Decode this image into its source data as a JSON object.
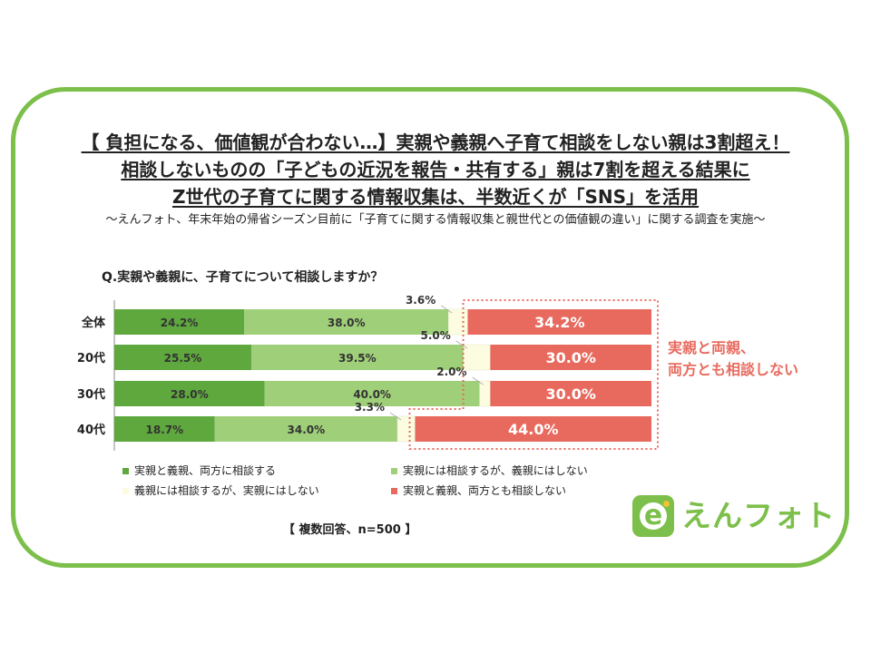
{
  "header": {
    "title_lines": [
      "【 負担になる、価値観が合わない…】実親や義親へ子育て相談をしない親は3割超え！",
      "相談しないものの「子どもの近況を報告・共有する」親は7割を超える結果に",
      "Z世代の子育てに関する情報収集は、半数近くが「SNS」を活用"
    ],
    "subtitle": "～えんフォト、年末年始の帰省シーズン目前に「子育てに関する情報収集と親世代との価値観の違い」に関する調査を実施～"
  },
  "question": "Q.実親や義親に、子育てについて相談しますか？",
  "callout": [
    "実親と両親、",
    "両方とも相談しない"
  ],
  "footnote": "【 複数回答、n=500 】",
  "logo": {
    "text": "えんフォト",
    "mark": "e",
    "icon": "enphoto-logo-icon"
  },
  "colors": {
    "frame": "#7cbf4a",
    "both": "#5ea83e",
    "real_only": "#9fcf79",
    "in_law_only": "#fbfce0",
    "neither": "#e8695d",
    "callout": "#e86b5f"
  },
  "chart_data": {
    "type": "bar",
    "orientation": "horizontal",
    "stacked": true,
    "normalized": true,
    "categories": [
      "全体",
      "20代",
      "30代",
      "40代"
    ],
    "series": [
      {
        "name": "実親と義親、両方に相談する",
        "values": [
          24.2,
          25.5,
          28.0,
          18.7
        ],
        "labels": [
          "24.2%",
          "25.5%",
          "28.0%",
          "18.7%"
        ]
      },
      {
        "name": "実親には相談するが、義親にはしない",
        "values": [
          38.0,
          39.5,
          40.0,
          34.0
        ],
        "labels": [
          "38.0%",
          "39.5%",
          "40.0%",
          "34.0%"
        ]
      },
      {
        "name": "義親には相談するが、実親にはしない",
        "values": [
          3.6,
          5.0,
          2.0,
          3.3
        ],
        "labels": [
          "3.6%",
          "5.0%",
          "2.0%",
          "3.3%"
        ]
      },
      {
        "name": "実親と義親、両方とも相談しない",
        "values": [
          34.2,
          30.0,
          30.0,
          44.0
        ],
        "labels": [
          "34.2%",
          "30.0%",
          "30.0%",
          "44.0%"
        ]
      }
    ],
    "xlim": [
      0,
      100
    ],
    "legend_position": "bottom",
    "grid": false
  }
}
